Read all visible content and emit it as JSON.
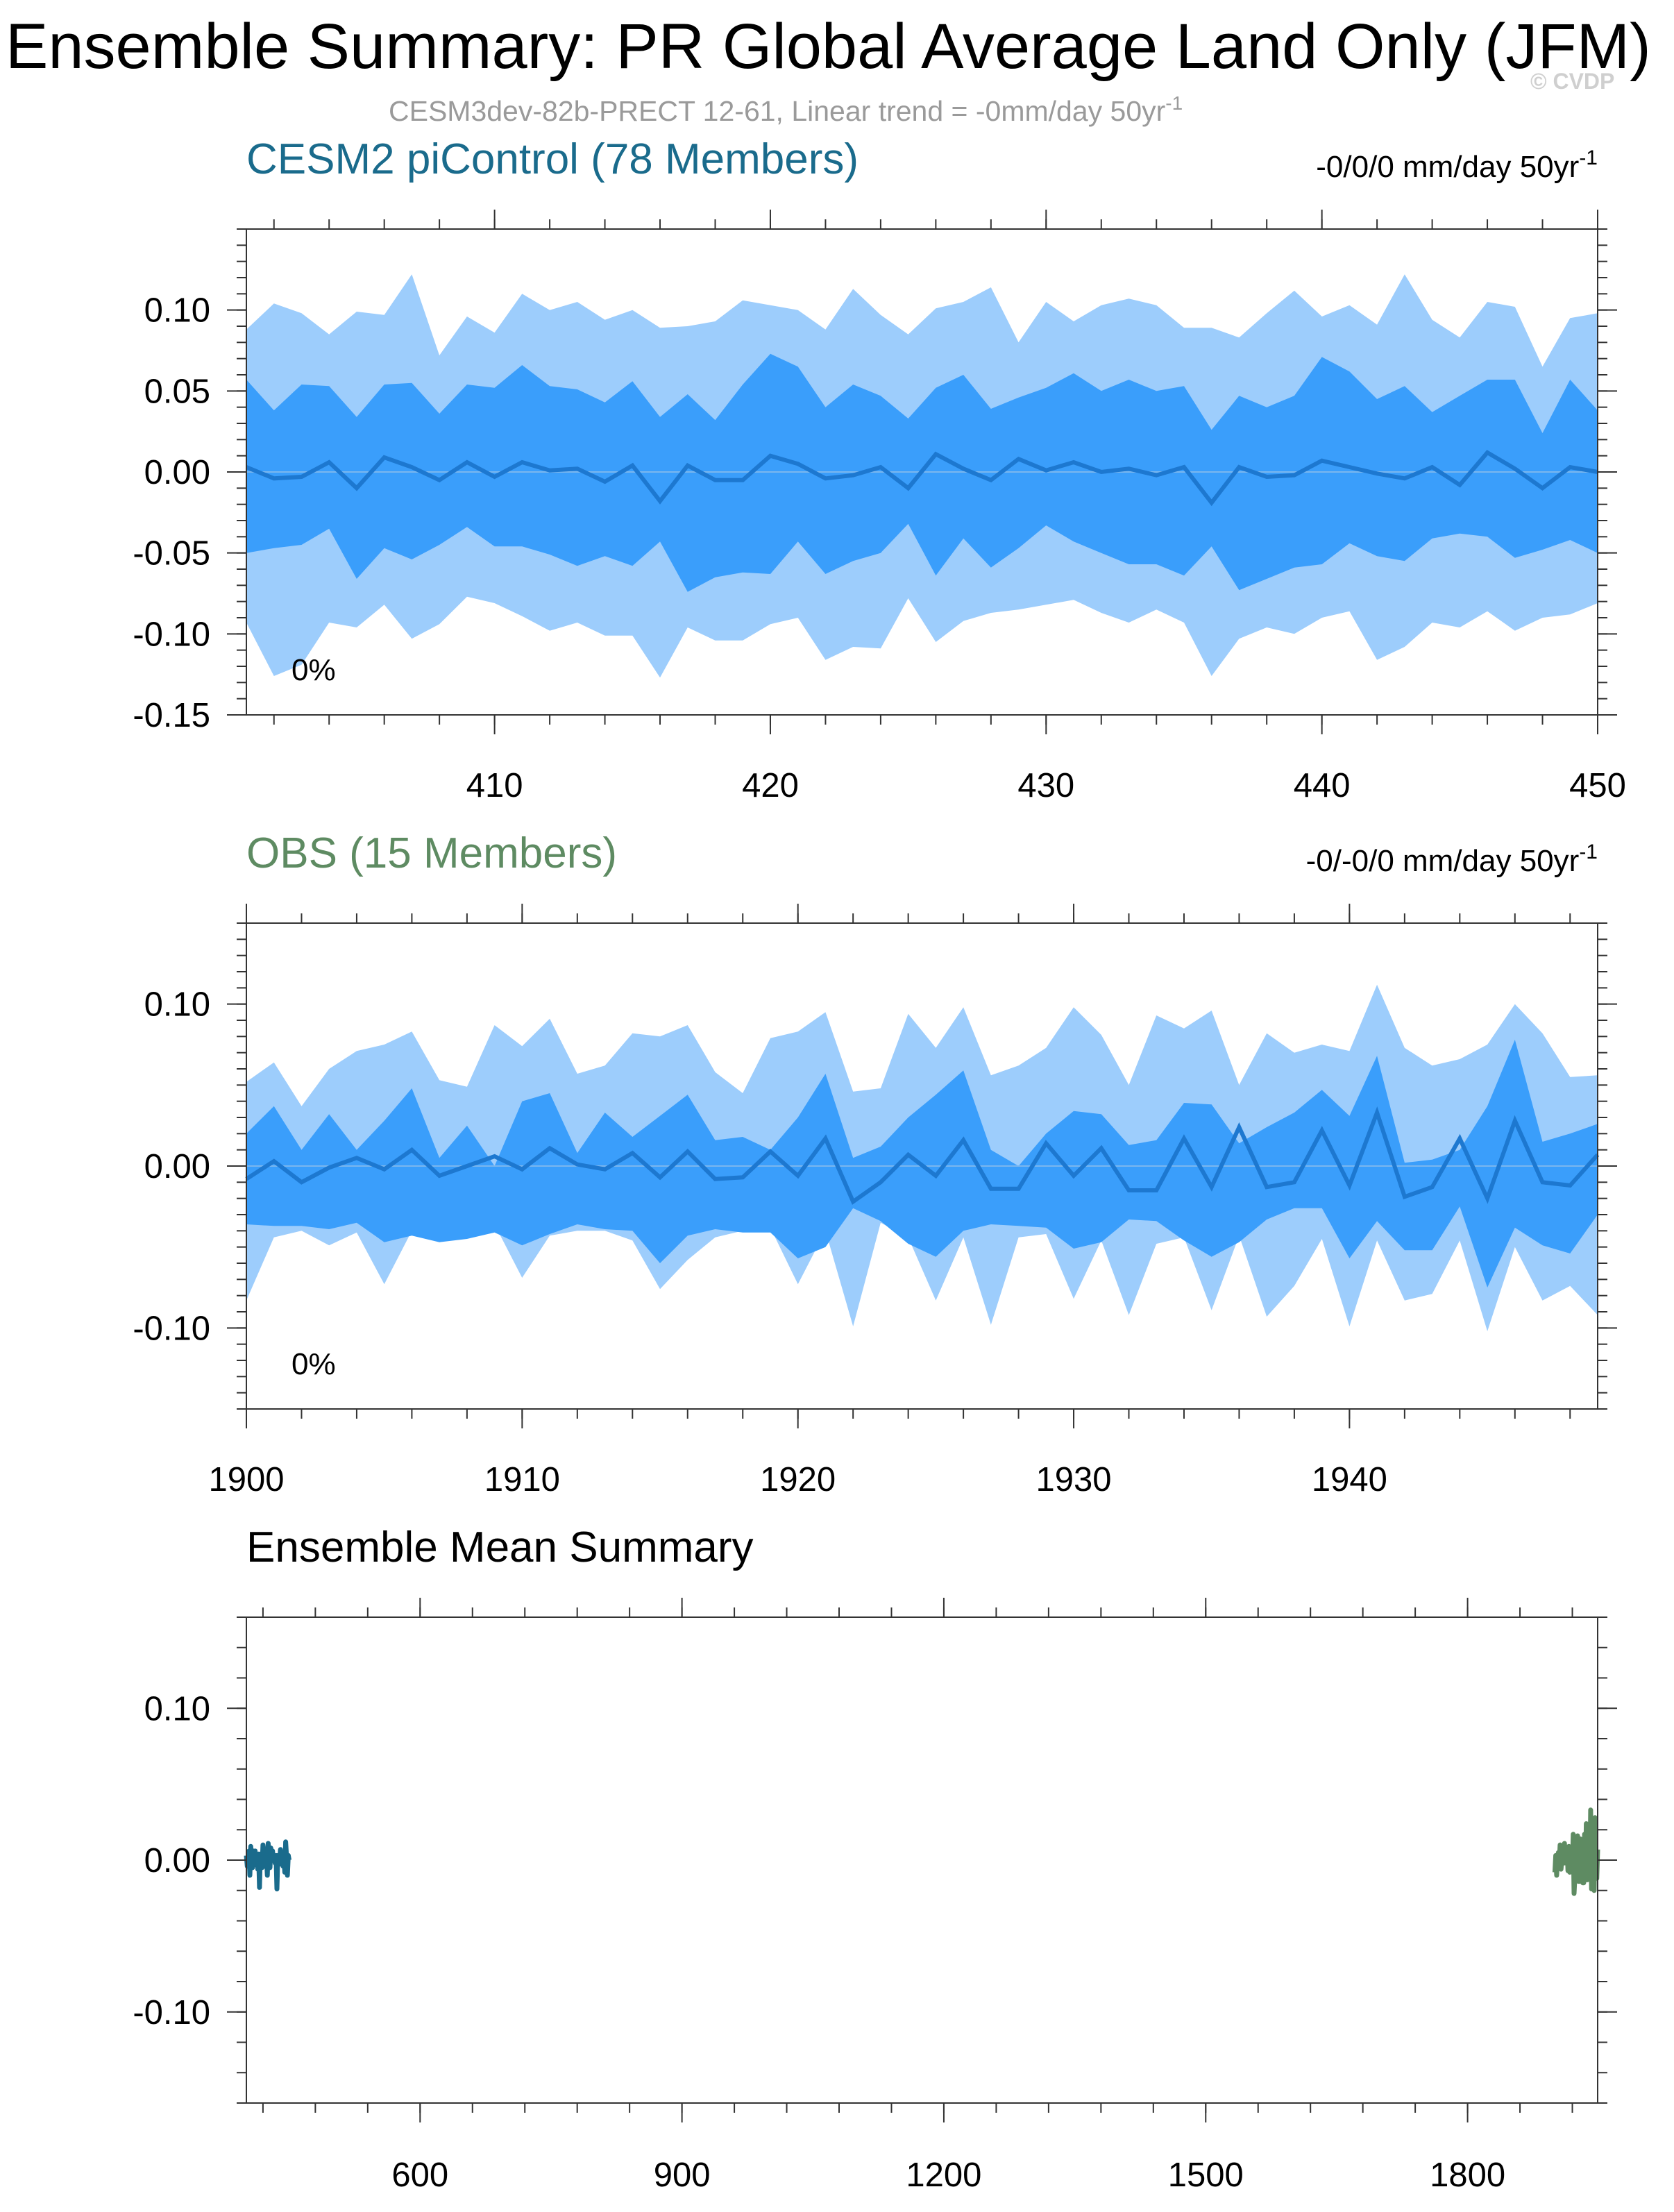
{
  "figure": {
    "title": "Ensemble Summary: PR Global Average Land Only (JFM)",
    "subtitle": "CESM3dev-82b-PRECT 12-61, Linear trend = -0mm/day 50yr",
    "subtitle_sup": "-1",
    "copyright": "© CVDP"
  },
  "colors": {
    "band_outer": "#9dcdfc",
    "band_inner": "#3a9efb",
    "mean_line": "#1d78d0",
    "zero_line": "#7ab6ee",
    "model": "#1a6b8c",
    "obs": "#5e8b62",
    "axis": "#333333"
  },
  "chart_data": [
    {
      "type": "area",
      "name": "model-ensemble",
      "title": "CESM2 piControl (78 Members)",
      "trend_text": "-0/0/0 mm/day 50yr",
      "trend_sup": "-1",
      "percent_label": "0%",
      "x_start": 401,
      "xlim": [
        401,
        450
      ],
      "xticks": [
        410,
        420,
        430,
        440,
        450
      ],
      "xtick_labels": [
        "410",
        "420",
        "430",
        "440",
        "450"
      ],
      "ylim": [
        -0.15,
        0.15
      ],
      "yticks": [
        0.1,
        0.05,
        0.0,
        -0.05,
        -0.1,
        -0.15
      ],
      "ytick_labels": [
        "0.10",
        "0.05",
        "0.00",
        "-0.05",
        "-0.10",
        "-0.15"
      ],
      "grid": false,
      "outer_upper": [
        0.088,
        0.104,
        0.098,
        0.085,
        0.099,
        0.097,
        0.122,
        0.072,
        0.096,
        0.086,
        0.11,
        0.1,
        0.105,
        0.094,
        0.1,
        0.089,
        0.09,
        0.093,
        0.106,
        0.103,
        0.1,
        0.088,
        0.113,
        0.097,
        0.085,
        0.101,
        0.105,
        0.114,
        0.08,
        0.105,
        0.093,
        0.103,
        0.107,
        0.103,
        0.089,
        0.089,
        0.083,
        0.098,
        0.112,
        0.096,
        0.103,
        0.091,
        0.122,
        0.094,
        0.083,
        0.105,
        0.102,
        0.065,
        0.095,
        0.098
      ],
      "inner_upper": [
        0.057,
        0.038,
        0.054,
        0.053,
        0.034,
        0.054,
        0.055,
        0.036,
        0.054,
        0.052,
        0.066,
        0.053,
        0.051,
        0.043,
        0.056,
        0.034,
        0.048,
        0.032,
        0.054,
        0.073,
        0.065,
        0.04,
        0.054,
        0.047,
        0.033,
        0.052,
        0.06,
        0.039,
        0.046,
        0.052,
        0.061,
        0.05,
        0.057,
        0.05,
        0.053,
        0.026,
        0.047,
        0.04,
        0.047,
        0.071,
        0.062,
        0.045,
        0.053,
        0.037,
        0.047,
        0.057,
        0.057,
        0.024,
        0.057,
        0.038
      ],
      "mean": [
        0.003,
        -0.004,
        -0.003,
        0.006,
        -0.01,
        0.009,
        0.003,
        -0.005,
        0.006,
        -0.003,
        0.006,
        0.001,
        0.002,
        -0.006,
        0.004,
        -0.018,
        0.004,
        -0.005,
        -0.005,
        0.01,
        0.005,
        -0.004,
        -0.002,
        0.003,
        -0.01,
        0.011,
        0.002,
        -0.005,
        0.008,
        0.001,
        0.006,
        0.0,
        0.002,
        -0.002,
        0.003,
        -0.019,
        0.003,
        -0.003,
        -0.002,
        0.007,
        0.003,
        -0.001,
        -0.004,
        0.003,
        -0.008,
        0.012,
        0.002,
        -0.01,
        0.003,
        0.0
      ],
      "inner_lower": [
        -0.05,
        -0.047,
        -0.045,
        -0.035,
        -0.066,
        -0.047,
        -0.054,
        -0.045,
        -0.034,
        -0.046,
        -0.046,
        -0.051,
        -0.058,
        -0.052,
        -0.058,
        -0.043,
        -0.074,
        -0.065,
        -0.062,
        -0.063,
        -0.043,
        -0.063,
        -0.055,
        -0.05,
        -0.032,
        -0.064,
        -0.041,
        -0.059,
        -0.047,
        -0.033,
        -0.043,
        -0.05,
        -0.057,
        -0.057,
        -0.064,
        -0.046,
        -0.073,
        -0.066,
        -0.059,
        -0.057,
        -0.044,
        -0.052,
        -0.055,
        -0.041,
        -0.038,
        -0.04,
        -0.053,
        -0.048,
        -0.042,
        -0.05
      ],
      "outer_lower": [
        -0.093,
        -0.126,
        -0.119,
        -0.093,
        -0.096,
        -0.082,
        -0.103,
        -0.094,
        -0.077,
        -0.081,
        -0.089,
        -0.098,
        -0.093,
        -0.101,
        -0.101,
        -0.127,
        -0.096,
        -0.104,
        -0.104,
        -0.094,
        -0.09,
        -0.116,
        -0.108,
        -0.109,
        -0.078,
        -0.105,
        -0.092,
        -0.087,
        -0.085,
        -0.082,
        -0.079,
        -0.087,
        -0.093,
        -0.085,
        -0.093,
        -0.126,
        -0.103,
        -0.096,
        -0.1,
        -0.09,
        -0.086,
        -0.116,
        -0.108,
        -0.093,
        -0.096,
        -0.086,
        -0.098,
        -0.09,
        -0.088,
        -0.081
      ]
    },
    {
      "type": "area",
      "name": "obs-ensemble",
      "title": "OBS (15 Members)",
      "trend_text": "-0/-0/0 mm/day 50yr",
      "trend_sup": "-1",
      "percent_label": "0%",
      "x_start": 1900,
      "xlim": [
        1900,
        1949
      ],
      "xticks": [
        1900,
        1910,
        1920,
        1930,
        1940
      ],
      "xtick_labels": [
        "1900",
        "1910",
        "1920",
        "1930",
        "1940"
      ],
      "ylim": [
        -0.15,
        0.15
      ],
      "yticks": [
        0.1,
        0.0,
        -0.1
      ],
      "ytick_labels": [
        "0.10",
        "0.00",
        "-0.10"
      ],
      "grid": false,
      "outer_upper": [
        0.052,
        0.064,
        0.037,
        0.06,
        0.071,
        0.075,
        0.083,
        0.053,
        0.049,
        0.087,
        0.074,
        0.091,
        0.057,
        0.062,
        0.082,
        0.08,
        0.087,
        0.058,
        0.045,
        0.079,
        0.083,
        0.095,
        0.046,
        0.048,
        0.094,
        0.073,
        0.098,
        0.056,
        0.062,
        0.073,
        0.098,
        0.081,
        0.05,
        0.093,
        0.085,
        0.096,
        0.05,
        0.082,
        0.07,
        0.075,
        0.071,
        0.112,
        0.073,
        0.062,
        0.066,
        0.075,
        0.1,
        0.082,
        0.055,
        0.056
      ],
      "inner_upper": [
        0.02,
        0.037,
        0.01,
        0.032,
        0.01,
        0.028,
        0.048,
        0.005,
        0.025,
        0.0,
        0.04,
        0.045,
        0.008,
        0.033,
        0.018,
        0.031,
        0.044,
        0.016,
        0.018,
        0.01,
        0.03,
        0.057,
        0.005,
        0.012,
        0.03,
        0.044,
        0.059,
        0.01,
        0.0,
        0.02,
        0.034,
        0.032,
        0.013,
        0.016,
        0.039,
        0.038,
        0.014,
        0.024,
        0.033,
        0.047,
        0.031,
        0.068,
        0.002,
        0.004,
        0.01,
        0.037,
        0.078,
        0.015,
        0.02,
        0.026
      ],
      "mean": [
        -0.008,
        0.003,
        -0.01,
        -0.001,
        0.005,
        -0.002,
        0.01,
        -0.006,
        0.0,
        0.006,
        -0.002,
        0.011,
        0.001,
        -0.002,
        0.008,
        -0.007,
        0.009,
        -0.008,
        -0.007,
        0.009,
        -0.006,
        0.017,
        -0.022,
        -0.01,
        0.007,
        -0.006,
        0.016,
        -0.014,
        -0.014,
        0.014,
        -0.006,
        0.011,
        -0.015,
        -0.015,
        0.017,
        -0.013,
        0.024,
        -0.013,
        -0.01,
        0.022,
        -0.012,
        0.033,
        -0.019,
        -0.013,
        0.017,
        -0.02,
        0.028,
        -0.01,
        -0.012,
        0.007
      ],
      "inner_lower": [
        -0.036,
        -0.037,
        -0.037,
        -0.039,
        -0.035,
        -0.047,
        -0.043,
        -0.047,
        -0.045,
        -0.041,
        -0.049,
        -0.042,
        -0.036,
        -0.039,
        -0.04,
        -0.06,
        -0.043,
        -0.039,
        -0.041,
        -0.041,
        -0.057,
        -0.05,
        -0.026,
        -0.034,
        -0.048,
        -0.056,
        -0.04,
        -0.036,
        -0.037,
        -0.038,
        -0.051,
        -0.047,
        -0.033,
        -0.034,
        -0.046,
        -0.056,
        -0.047,
        -0.033,
        -0.026,
        -0.026,
        -0.057,
        -0.034,
        -0.052,
        -0.052,
        -0.025,
        -0.075,
        -0.038,
        -0.049,
        -0.054,
        -0.03
      ],
      "outer_lower": [
        -0.083,
        -0.044,
        -0.04,
        -0.049,
        -0.041,
        -0.073,
        -0.04,
        -0.046,
        -0.04,
        -0.036,
        -0.069,
        -0.043,
        -0.04,
        -0.04,
        -0.046,
        -0.076,
        -0.058,
        -0.044,
        -0.04,
        -0.038,
        -0.073,
        -0.04,
        -0.099,
        -0.035,
        -0.044,
        -0.083,
        -0.044,
        -0.098,
        -0.044,
        -0.042,
        -0.082,
        -0.046,
        -0.092,
        -0.048,
        -0.044,
        -0.089,
        -0.043,
        -0.093,
        -0.074,
        -0.045,
        -0.099,
        -0.046,
        -0.083,
        -0.079,
        -0.046,
        -0.102,
        -0.05,
        -0.083,
        -0.074,
        -0.092
      ]
    },
    {
      "type": "line",
      "name": "ensemble-mean-summary",
      "title": "Ensemble Mean Summary",
      "xlim": [
        401,
        1949
      ],
      "xticks": [
        600,
        900,
        1200,
        1500,
        1800
      ],
      "xtick_labels": [
        "600",
        "900",
        "1200",
        "1500",
        "1800"
      ],
      "ylim": [
        -0.16,
        0.16
      ],
      "yticks": [
        0.1,
        0.0,
        -0.1
      ],
      "ytick_labels": [
        "0.10",
        "0.00",
        "-0.10"
      ],
      "grid": false,
      "series": [
        {
          "name": "CESM2 piControl",
          "x_start": 401,
          "values": [
            0.003,
            -0.004,
            -0.003,
            0.006,
            -0.01,
            0.009,
            0.003,
            -0.005,
            0.006,
            -0.003,
            0.006,
            0.001,
            0.002,
            -0.006,
            0.004,
            -0.018,
            0.004,
            -0.005,
            -0.005,
            0.01,
            0.005,
            -0.004,
            -0.002,
            0.003,
            -0.01,
            0.011,
            0.002,
            -0.005,
            0.008,
            0.001,
            0.006,
            0.0,
            0.002,
            -0.002,
            0.003,
            -0.019,
            0.003,
            -0.003,
            -0.002,
            0.007,
            0.003,
            -0.001,
            -0.004,
            0.003,
            -0.008,
            0.012,
            0.002,
            -0.01,
            0.003,
            0.0
          ]
        },
        {
          "name": "OBS",
          "x_start": 1900,
          "values": [
            -0.008,
            0.003,
            -0.01,
            -0.001,
            0.005,
            -0.002,
            0.01,
            -0.006,
            0.0,
            0.006,
            -0.002,
            0.011,
            0.001,
            -0.002,
            0.008,
            -0.007,
            0.009,
            -0.008,
            -0.007,
            0.009,
            -0.006,
            0.017,
            -0.022,
            -0.01,
            0.007,
            -0.006,
            0.016,
            -0.014,
            -0.014,
            0.014,
            -0.006,
            0.011,
            -0.015,
            -0.015,
            0.017,
            -0.013,
            0.024,
            -0.013,
            -0.01,
            0.022,
            -0.012,
            0.033,
            -0.019,
            -0.013,
            0.017,
            -0.02,
            0.028,
            -0.01,
            -0.012,
            0.007
          ]
        }
      ]
    }
  ]
}
